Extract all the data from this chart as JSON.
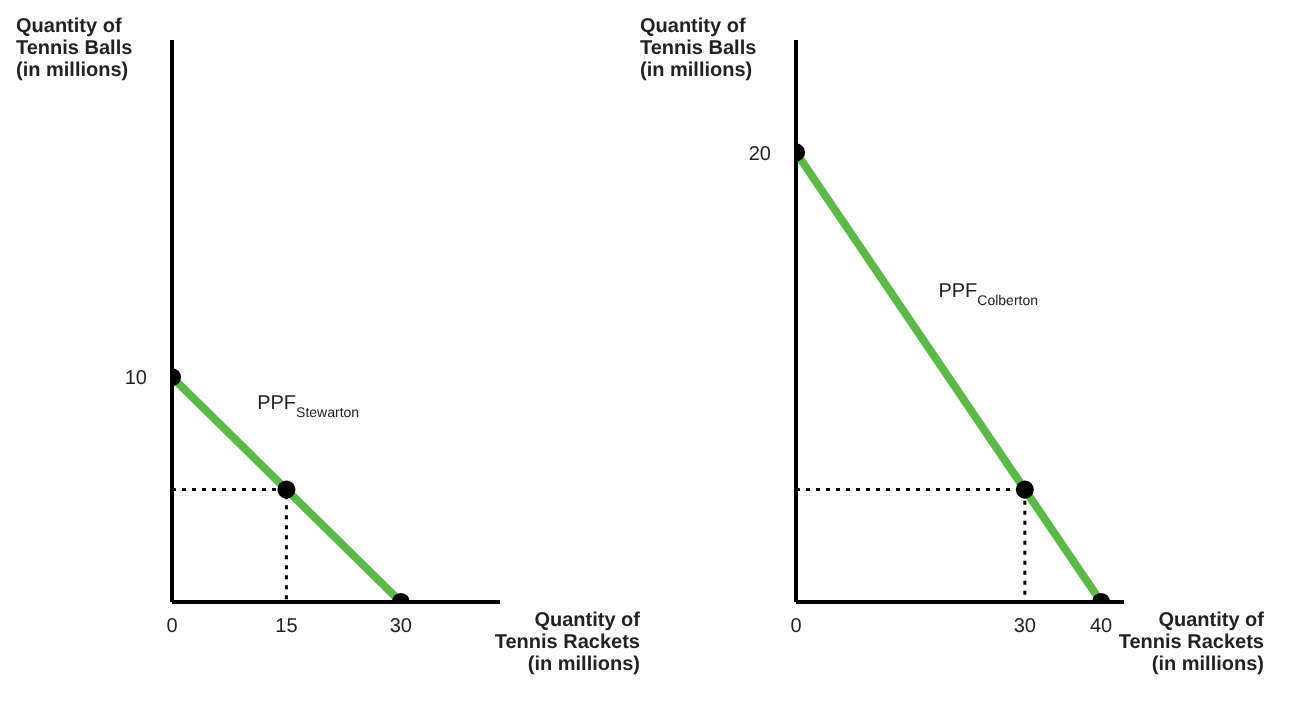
{
  "chart_data": [
    {
      "type": "line",
      "xlabel": "Quantity of\nTennis Rackets\n(in millions)",
      "ylabel": "Quantity of\nTennis Balls\n(in millions)",
      "xlim": [
        0,
        43
      ],
      "xticks": [
        0,
        15,
        30
      ],
      "ylim": [
        0,
        25
      ],
      "annotations": [
        "PPF$_{Stewarton}$"
      ],
      "series": [
        {
          "color": "#5bb947",
          "x": [
            0,
            15,
            30
          ],
          "values": [
            10,
            5,
            0
          ],
          "line_style": "solid"
        },
        {
          "color": "#000000",
          "x": [
            0,
            15,
            15
          ],
          "values": [
            5,
            5,
            0
          ],
          "line_style": "dotted"
        },
        {
          "type": "scatter",
          "color": "#000000",
          "x": [
            0,
            15,
            30
          ],
          "values": [
            10,
            5,
            0
          ],
          "marker": "circle",
          "value_labels": [
            "10",
            null,
            null
          ]
        }
      ]
    },
    {
      "type": "line",
      "xlabel": "Quantity of\nTennis Rackets\n(in millions)",
      "ylabel": "Quantity of\nTennis Balls\n(in millions)",
      "xlim": [
        0,
        43
      ],
      "xticks": [
        0,
        30,
        40
      ],
      "ylim": [
        0,
        25
      ],
      "annotations": [
        "PPF$_{Colberton}$"
      ],
      "series": [
        {
          "color": "#5bb947",
          "x": [
            0,
            30,
            40
          ],
          "values": [
            20,
            5,
            0
          ],
          "line_style": "solid"
        },
        {
          "color": "#000000",
          "x": [
            0,
            30,
            30
          ],
          "values": [
            5,
            5,
            0
          ],
          "line_style": "dotted"
        },
        {
          "type": "scatter",
          "color": "#000000",
          "x": [
            0,
            30,
            40
          ],
          "values": [
            20,
            5,
            0
          ],
          "marker": "circle",
          "value_labels": [
            "20",
            null,
            null
          ]
        }
      ]
    }
  ]
}
